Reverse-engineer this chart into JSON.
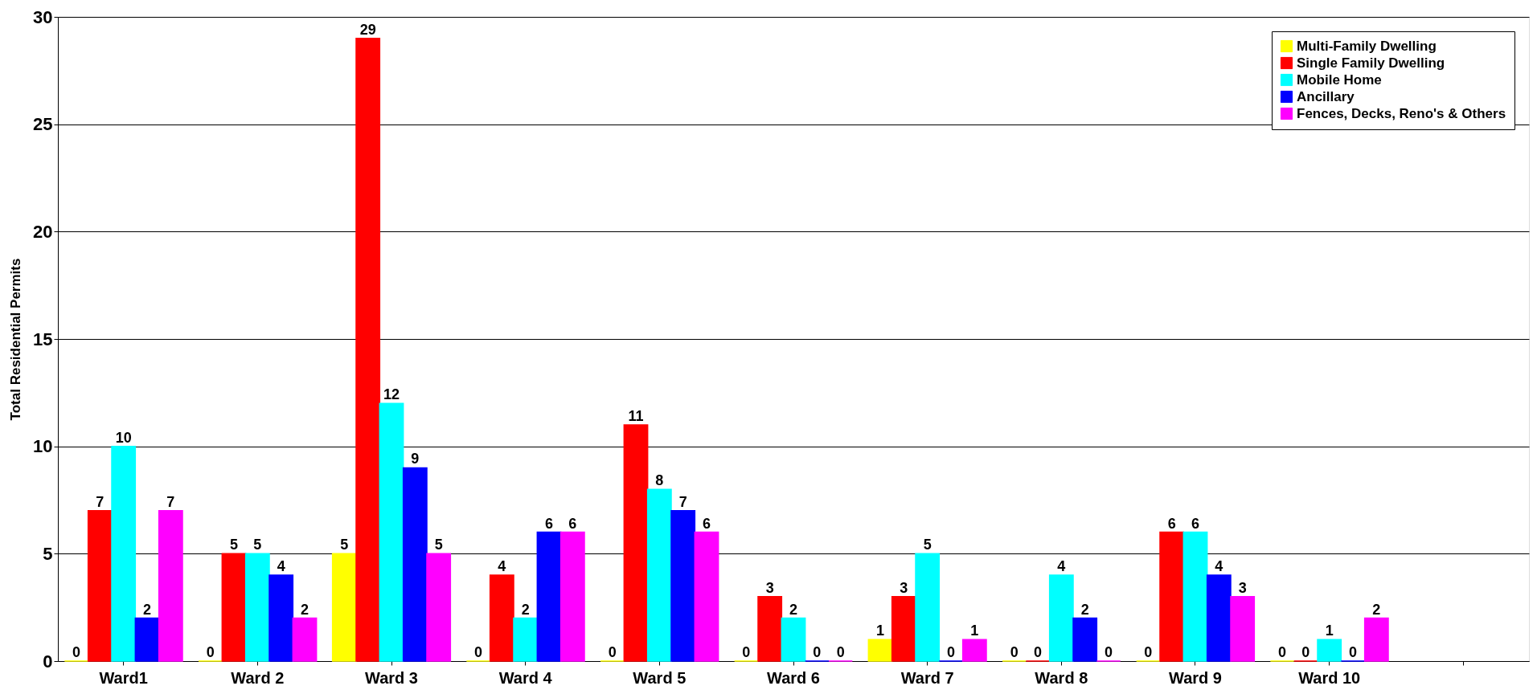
{
  "chart_data": {
    "type": "bar",
    "ylabel": "Total Residential Permits",
    "categories": [
      "Ward1",
      "Ward 2",
      "Ward 3",
      "Ward 4",
      "Ward 5",
      "Ward 6",
      "Ward 7",
      "Ward 8",
      "Ward 9",
      "Ward 10",
      null
    ],
    "series": [
      {
        "name": "Multi-Family Dwelling",
        "color": "#ffff00",
        "values": [
          0,
          0,
          5,
          0,
          0,
          0,
          1,
          0,
          0,
          0,
          null
        ]
      },
      {
        "name": "Single Family Dwelling",
        "color": "#ff0000",
        "values": [
          7,
          5,
          29,
          4,
          11,
          3,
          3,
          0,
          6,
          0,
          null
        ]
      },
      {
        "name": "Mobile Home",
        "color": "#00ffff",
        "values": [
          10,
          5,
          12,
          2,
          8,
          2,
          5,
          4,
          6,
          1,
          null
        ]
      },
      {
        "name": "Ancillary",
        "color": "#0000ff",
        "values": [
          2,
          4,
          9,
          6,
          7,
          0,
          0,
          2,
          4,
          0,
          null
        ]
      },
      {
        "name": "Fences, Decks, Reno's & Others",
        "color": "#ff00ff",
        "values": [
          7,
          2,
          5,
          6,
          6,
          0,
          1,
          0,
          3,
          2,
          null
        ]
      }
    ],
    "ylim": [
      0,
      30
    ],
    "yticks": [
      0,
      5,
      10,
      15,
      20,
      25,
      30
    ],
    "grid": "y",
    "legend": "top right",
    "data_labels": true
  }
}
